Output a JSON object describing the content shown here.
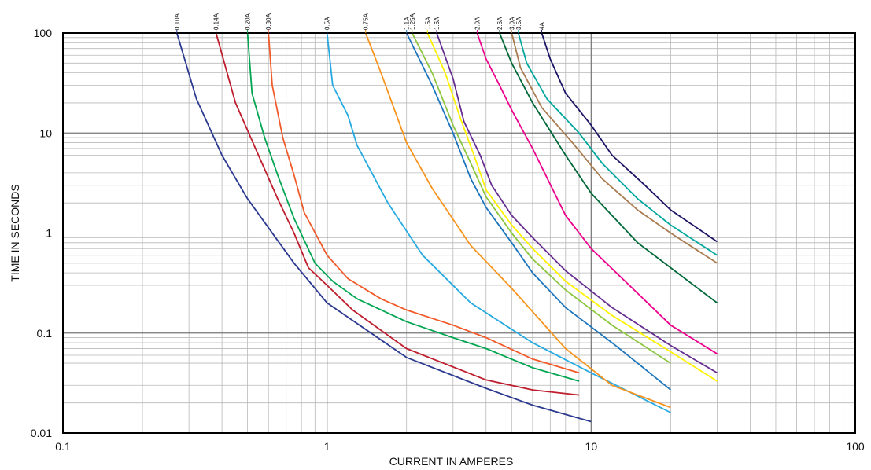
{
  "chart_data": {
    "type": "line",
    "title": "",
    "xlabel": "CURRENT IN  AMPERES",
    "ylabel": "TIME IN SECONDS",
    "x_scale": "log",
    "y_scale": "log",
    "xlim": [
      0.1,
      100
    ],
    "ylim": [
      0.01,
      100
    ],
    "grid": true,
    "x_ticks": [
      "0.1",
      "1",
      "10",
      "100"
    ],
    "y_ticks": [
      "0.01",
      "0.1",
      "1",
      "10",
      "100"
    ],
    "series": [
      {
        "name": "0.10A",
        "color": "#2B3990",
        "points": [
          [
            0.27,
            100
          ],
          [
            0.32,
            22
          ],
          [
            0.4,
            6
          ],
          [
            0.5,
            2.2
          ],
          [
            0.75,
            0.5
          ],
          [
            1,
            0.2
          ],
          [
            2,
            0.057
          ],
          [
            4,
            0.028
          ],
          [
            6,
            0.019
          ],
          [
            10,
            0.013
          ]
        ]
      },
      {
        "name": "0.14A",
        "color": "#BE1E2D",
        "points": [
          [
            0.38,
            100
          ],
          [
            0.45,
            20
          ],
          [
            0.55,
            6
          ],
          [
            0.65,
            2.2
          ],
          [
            0.75,
            1
          ],
          [
            0.85,
            0.45
          ],
          [
            1,
            0.3
          ],
          [
            1.25,
            0.17
          ],
          [
            2,
            0.07
          ],
          [
            4,
            0.034
          ],
          [
            6,
            0.027
          ],
          [
            9,
            0.024
          ]
        ]
      },
      {
        "name": "0.20A",
        "color": "#00A651",
        "points": [
          [
            0.5,
            100
          ],
          [
            0.52,
            25
          ],
          [
            0.58,
            9
          ],
          [
            0.65,
            3.8
          ],
          [
            0.75,
            1.4
          ],
          [
            0.9,
            0.5
          ],
          [
            1.05,
            0.33
          ],
          [
            1.3,
            0.22
          ],
          [
            2,
            0.13
          ],
          [
            3,
            0.09
          ],
          [
            4,
            0.07
          ],
          [
            6,
            0.045
          ],
          [
            9,
            0.033
          ]
        ]
      },
      {
        "name": "0.30A",
        "color": "#F15A29",
        "points": [
          [
            0.6,
            100
          ],
          [
            0.62,
            30
          ],
          [
            0.68,
            9
          ],
          [
            0.75,
            3.8
          ],
          [
            0.82,
            1.6
          ],
          [
            1,
            0.6
          ],
          [
            1.2,
            0.35
          ],
          [
            1.6,
            0.22
          ],
          [
            2,
            0.17
          ],
          [
            3,
            0.12
          ],
          [
            4,
            0.09
          ],
          [
            6,
            0.055
          ],
          [
            9,
            0.04
          ]
        ]
      },
      {
        "name": "0.5A",
        "color": "#27AAE1",
        "points": [
          [
            1,
            100
          ],
          [
            1.05,
            30
          ],
          [
            1.2,
            15
          ],
          [
            1.3,
            7.5
          ],
          [
            1.7,
            2
          ],
          [
            2.3,
            0.6
          ],
          [
            3.5,
            0.2
          ],
          [
            6,
            0.08
          ],
          [
            10,
            0.04
          ],
          [
            20,
            0.016
          ]
        ]
      },
      {
        "name": "0.75A",
        "color": "#F7941D",
        "points": [
          [
            1.4,
            100
          ],
          [
            1.6,
            40
          ],
          [
            2,
            8
          ],
          [
            2.5,
            2.8
          ],
          [
            3.5,
            0.75
          ],
          [
            5,
            0.28
          ],
          [
            8,
            0.07
          ],
          [
            12,
            0.03
          ],
          [
            20,
            0.018
          ]
        ]
      },
      {
        "name": "1.1A",
        "color": "#1C75BC",
        "points": [
          [
            2,
            100
          ],
          [
            2.5,
            30
          ],
          [
            3,
            10
          ],
          [
            3.5,
            3.5
          ],
          [
            4,
            1.8
          ],
          [
            5,
            0.8
          ],
          [
            6,
            0.4
          ],
          [
            8,
            0.18
          ],
          [
            12,
            0.08
          ],
          [
            15,
            0.05
          ],
          [
            20,
            0.027
          ]
        ]
      },
      {
        "name": "1.25A",
        "color": "#8DC63F",
        "points": [
          [
            2.1,
            100
          ],
          [
            2.5,
            40
          ],
          [
            3,
            12
          ],
          [
            3.5,
            5
          ],
          [
            4,
            2.3
          ],
          [
            5,
            1
          ],
          [
            6,
            0.55
          ],
          [
            8,
            0.27
          ],
          [
            12,
            0.12
          ],
          [
            20,
            0.05
          ]
        ]
      },
      {
        "name": "1.5A",
        "color": "#FFF200",
        "points": [
          [
            2.4,
            100
          ],
          [
            2.8,
            40
          ],
          [
            3.2,
            14
          ],
          [
            3.6,
            6
          ],
          [
            4,
            2.7
          ],
          [
            5,
            1.2
          ],
          [
            6,
            0.7
          ],
          [
            8,
            0.33
          ],
          [
            12,
            0.15
          ],
          [
            20,
            0.065
          ],
          [
            30,
            0.033
          ]
        ]
      },
      {
        "name": "1.6A",
        "color": "#662D91",
        "points": [
          [
            2.6,
            100
          ],
          [
            3,
            35
          ],
          [
            3.3,
            13
          ],
          [
            3.8,
            6
          ],
          [
            4.2,
            3
          ],
          [
            5,
            1.5
          ],
          [
            6,
            0.9
          ],
          [
            8,
            0.42
          ],
          [
            12,
            0.18
          ],
          [
            20,
            0.075
          ],
          [
            30,
            0.04
          ]
        ]
      },
      {
        "name": "2.0A",
        "color": "#EC008C",
        "points": [
          [
            3.7,
            100
          ],
          [
            4,
            55
          ],
          [
            4.5,
            30
          ],
          [
            5,
            17
          ],
          [
            6,
            7
          ],
          [
            8,
            1.5
          ],
          [
            10,
            0.7
          ],
          [
            15,
            0.25
          ],
          [
            20,
            0.12
          ],
          [
            30,
            0.062
          ]
        ]
      },
      {
        "name": "2.6A",
        "color": "#006838",
        "points": [
          [
            4.5,
            100
          ],
          [
            5,
            50
          ],
          [
            6,
            20
          ],
          [
            8,
            6
          ],
          [
            10,
            2.5
          ],
          [
            15,
            0.8
          ],
          [
            20,
            0.45
          ],
          [
            30,
            0.2
          ]
        ]
      },
      {
        "name": "3.0A",
        "color": "#A97C50",
        "points": [
          [
            5,
            100
          ],
          [
            5.4,
            45
          ],
          [
            6.5,
            18
          ],
          [
            8.5,
            8
          ],
          [
            11,
            3.5
          ],
          [
            15,
            1.7
          ],
          [
            20,
            1
          ],
          [
            30,
            0.5
          ]
        ]
      },
      {
        "name": "3.5A",
        "color": "#00A79D",
        "points": [
          [
            5.3,
            100
          ],
          [
            5.7,
            50
          ],
          [
            6.8,
            22
          ],
          [
            9,
            10
          ],
          [
            11,
            5
          ],
          [
            15,
            2.2
          ],
          [
            20,
            1.2
          ],
          [
            30,
            0.6
          ]
        ]
      },
      {
        "name": "4A",
        "color": "#1B1464",
        "points": [
          [
            6.5,
            100
          ],
          [
            7,
            55
          ],
          [
            8,
            25
          ],
          [
            10,
            12
          ],
          [
            12,
            6
          ],
          [
            16,
            3
          ],
          [
            20,
            1.7
          ],
          [
            30,
            0.82
          ]
        ]
      }
    ]
  }
}
